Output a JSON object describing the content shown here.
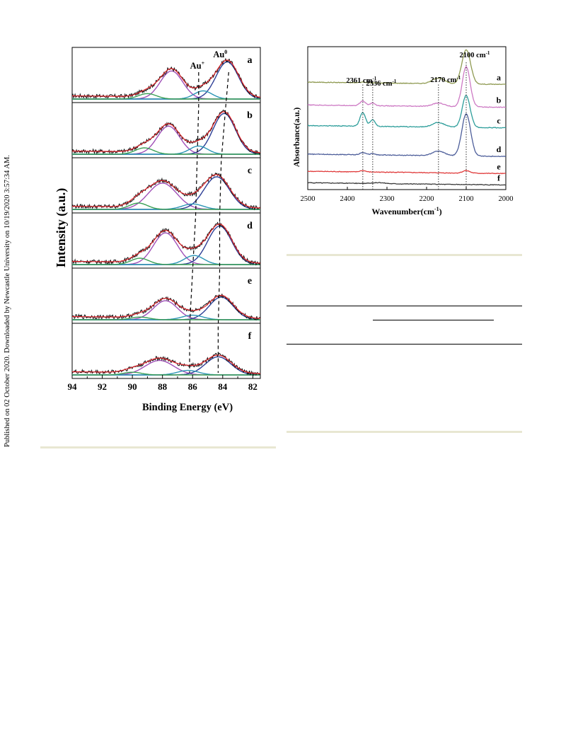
{
  "side_note": "Published on 02 October 2020. Downloaded by Newcastle University on 10/19/2020 3:57:34 AM.",
  "colors": {
    "raw": "#111111",
    "fit": "#e0242b",
    "envelope": "#2a8a3a",
    "au0_main": "#2e3f96",
    "au_main": "#a050b8",
    "au_plus": "#2b95b5",
    "satellite": "#3aa055",
    "rule": "#e8e7d2"
  },
  "chart_data": [
    {
      "type": "line",
      "title": "",
      "xlabel": "Binding Energy (eV)",
      "ylabel": "Intensity (a.u.)",
      "xlim": [
        94,
        81.5
      ],
      "x_ticks": [
        94,
        92,
        90,
        88,
        86,
        84,
        82
      ],
      "panel_labels": [
        "a",
        "b",
        "c",
        "d",
        "e",
        "f"
      ],
      "annotations": [
        {
          "text": "Au",
          "sup": "+",
          "x": 85.5
        },
        {
          "text": "Au",
          "sup": "0",
          "x": 83.6
        }
      ],
      "series": [
        {
          "panel": "a",
          "peaks": [
            {
              "center": 87.4,
              "height": 0.62,
              "width": 0.75
            },
            {
              "center": 83.7,
              "height": 0.82,
              "width": 0.75
            },
            {
              "center": 85.3,
              "height": 0.18,
              "width": 0.6
            },
            {
              "center": 89.0,
              "height": 0.12,
              "width": 0.6
            }
          ],
          "dashed_marker": [
            85.6,
            83.6
          ]
        },
        {
          "panel": "b",
          "peaks": [
            {
              "center": 87.6,
              "height": 0.62,
              "width": 0.75
            },
            {
              "center": 83.9,
              "height": 0.9,
              "width": 0.75
            },
            {
              "center": 85.6,
              "height": 0.18,
              "width": 0.6
            },
            {
              "center": 89.2,
              "height": 0.14,
              "width": 0.6
            }
          ],
          "dashed_marker": [
            85.6,
            83.8
          ]
        },
        {
          "panel": "c",
          "peaks": [
            {
              "center": 88.0,
              "height": 0.58,
              "width": 0.95
            },
            {
              "center": 84.4,
              "height": 0.72,
              "width": 0.85
            },
            {
              "center": 86.0,
              "height": 0.12,
              "width": 0.7
            },
            {
              "center": 89.6,
              "height": 0.14,
              "width": 0.6
            }
          ],
          "dashed_marker": [
            85.7,
            84.1
          ]
        },
        {
          "panel": "d",
          "peaks": [
            {
              "center": 87.8,
              "height": 0.7,
              "width": 0.8
            },
            {
              "center": 84.2,
              "height": 0.85,
              "width": 0.8
            },
            {
              "center": 85.9,
              "height": 0.2,
              "width": 0.65
            },
            {
              "center": 89.5,
              "height": 0.14,
              "width": 0.6
            }
          ],
          "dashed_marker": [
            85.8,
            84.2
          ]
        },
        {
          "panel": "e",
          "peaks": [
            {
              "center": 87.8,
              "height": 0.42,
              "width": 0.8
            },
            {
              "center": 84.1,
              "height": 0.5,
              "width": 0.8
            },
            {
              "center": 86.0,
              "height": 0.1,
              "width": 0.7
            },
            {
              "center": 89.5,
              "height": 0.06,
              "width": 0.6
            }
          ],
          "dashed_marker": [
            86.0,
            84.2
          ]
        },
        {
          "panel": "f",
          "peaks": [
            {
              "center": 88.2,
              "height": 0.32,
              "width": 0.95
            },
            {
              "center": 84.3,
              "height": 0.4,
              "width": 0.85
            },
            {
              "center": 86.3,
              "height": 0.1,
              "width": 0.7
            },
            {
              "center": 90.0,
              "height": 0.06,
              "width": 0.6
            }
          ],
          "dashed_marker": [
            86.2,
            84.3
          ]
        }
      ]
    },
    {
      "type": "line",
      "title": "",
      "xlabel": "Wavenumber(cm",
      "xlabel_sup": "-1",
      "xlabel_tail": ")",
      "ylabel": "Absorbance(a.u.)",
      "xlim": [
        2500,
        2000
      ],
      "ylim": [
        0,
        1.25
      ],
      "x_ticks": [
        2500,
        2400,
        2300,
        2200,
        2100,
        2000
      ],
      "annotations": [
        {
          "text": "2361 cm",
          "sup": "-1",
          "x": 2361
        },
        {
          "text": "2336 cm",
          "sup": "-1",
          "x": 2336
        },
        {
          "text": "2170 cm",
          "sup": "-1",
          "x": 2170
        },
        {
          "text": "2100 cm",
          "sup": "-1",
          "x": 2100
        }
      ],
      "series": [
        {
          "name": "a",
          "color": "#8f9a52",
          "baseline": 0.93,
          "peaks": [
            [
              2100,
              0.3,
              11
            ],
            [
              2170,
              0.05,
              15
            ],
            [
              2361,
              0.006,
              7
            ]
          ]
        },
        {
          "name": "b",
          "color": "#cd7ac4",
          "baseline": 0.73,
          "peaks": [
            [
              2100,
              0.35,
              10
            ],
            [
              2170,
              0.03,
              15
            ],
            [
              2361,
              0.04,
              7
            ],
            [
              2336,
              0.025,
              6
            ]
          ]
        },
        {
          "name": "c",
          "color": "#2e9e9b",
          "baseline": 0.55,
          "peaks": [
            [
              2100,
              0.28,
              10
            ],
            [
              2170,
              0.04,
              15
            ],
            [
              2361,
              0.12,
              7
            ],
            [
              2336,
              0.06,
              6
            ]
          ]
        },
        {
          "name": "d",
          "color": "#4d5e9a",
          "baseline": 0.3,
          "peaks": [
            [
              2100,
              0.37,
              11
            ],
            [
              2170,
              0.04,
              15
            ],
            [
              2361,
              0.02,
              7
            ],
            [
              2336,
              0.012,
              6
            ]
          ]
        },
        {
          "name": "e",
          "color": "#e03b3b",
          "baseline": 0.15,
          "peaks": [
            [
              2100,
              0.022,
              9
            ],
            [
              2361,
              0.012,
              7
            ]
          ]
        },
        {
          "name": "f",
          "color": "#3a3a3a",
          "baseline": 0.05,
          "peaks": [
            [
              2320,
              0.008,
              15
            ]
          ]
        }
      ]
    }
  ]
}
